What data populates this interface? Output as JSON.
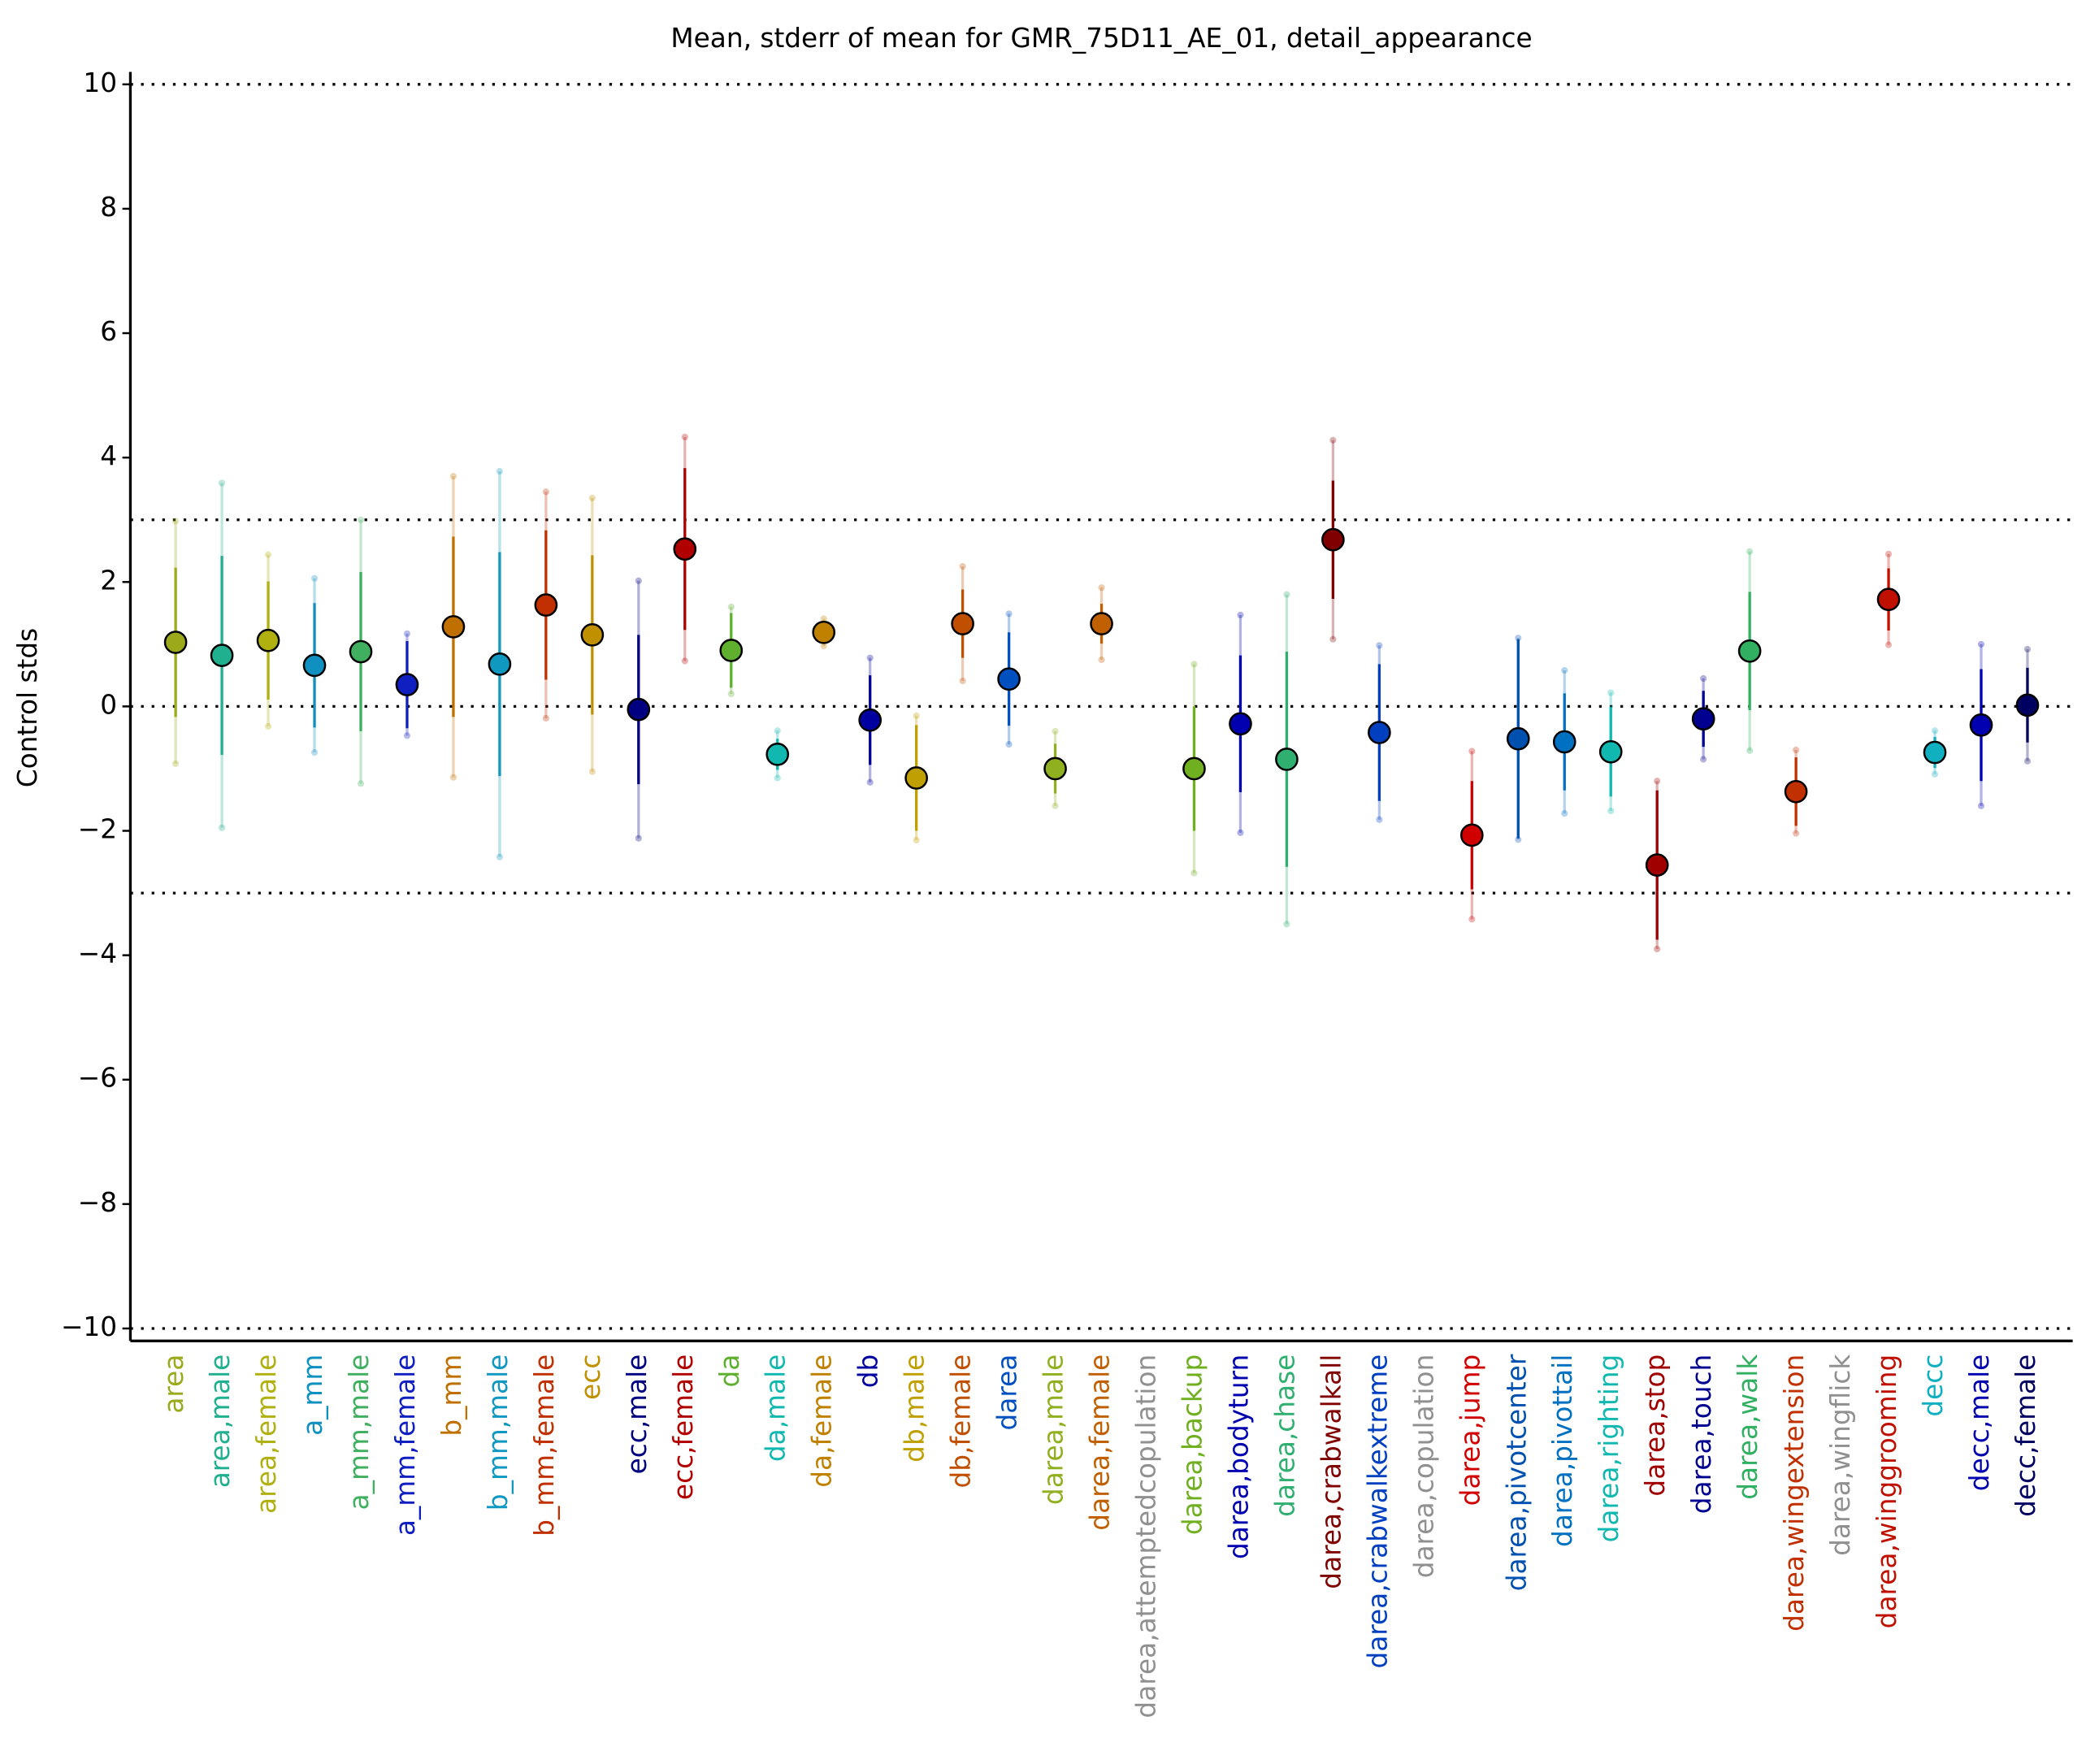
{
  "chart_data": {
    "type": "errorbar",
    "title": "Mean, stderr of mean for GMR_75D11_AE_01, detail_appearance",
    "ylabel": "Control stds",
    "categories": [
      "area",
      "area,male",
      "area,female",
      "a_mm",
      "a_mm,male",
      "a_mm,female",
      "b_mm",
      "b_mm,male",
      "b_mm,female",
      "ecc",
      "ecc,male",
      "ecc,female",
      "da",
      "da,male",
      "da,female",
      "db",
      "db,male",
      "db,female",
      "darea",
      "darea,male",
      "darea,female",
      "darea,attemptedcopulation",
      "darea,backup",
      "darea,bodyturn",
      "darea,chase",
      "darea,crabwalkall",
      "darea,crabwalkextreme",
      "darea,copulation",
      "darea,jump",
      "darea,pivotcenter",
      "darea,pivottail",
      "darea,righting",
      "darea,stop",
      "darea,touch",
      "darea,walk",
      "darea,wingextension",
      "darea,wingflick",
      "darea,winggrooming",
      "decc",
      "decc,male",
      "decc,female"
    ],
    "values": [
      1.03,
      0.82,
      1.06,
      0.66,
      0.88,
      0.35,
      1.28,
      0.68,
      1.63,
      1.15,
      -0.05,
      2.53,
      0.9,
      -0.77,
      1.19,
      -0.22,
      -1.15,
      1.33,
      0.44,
      -1.0,
      1.33,
      null,
      -1.0,
      -0.28,
      -0.85,
      2.68,
      -0.42,
      null,
      -2.07,
      -0.52,
      -0.57,
      -0.73,
      -2.55,
      -0.2,
      0.89,
      -1.37,
      null,
      1.72,
      -0.74,
      -0.3,
      0.02
    ],
    "stderr": [
      1.2,
      1.6,
      0.95,
      1.0,
      1.28,
      0.7,
      1.45,
      1.8,
      1.2,
      1.28,
      1.2,
      1.3,
      0.6,
      0.25,
      0.15,
      0.72,
      0.85,
      0.55,
      0.75,
      0.4,
      0.32,
      null,
      1.0,
      1.1,
      1.73,
      0.95,
      1.1,
      null,
      0.87,
      1.6,
      0.78,
      0.72,
      1.2,
      0.45,
      0.95,
      0.55,
      null,
      0.5,
      0.25,
      0.9,
      0.6
    ],
    "std": [
      1.95,
      2.77,
      1.38,
      1.4,
      2.12,
      0.82,
      2.42,
      3.1,
      1.82,
      2.2,
      2.07,
      1.8,
      0.7,
      0.38,
      0.22,
      1.0,
      1.0,
      0.92,
      1.05,
      0.6,
      0.58,
      null,
      1.68,
      1.75,
      2.65,
      1.6,
      1.4,
      null,
      1.35,
      1.62,
      1.15,
      0.95,
      1.35,
      0.65,
      1.6,
      0.67,
      null,
      0.73,
      0.35,
      1.3,
      0.9
    ],
    "colors": [
      "#9aaa1a",
      "#20b090",
      "#b0b010",
      "#1090c0",
      "#40b060",
      "#1020c0",
      "#c07000",
      "#1098c0",
      "#c03000",
      "#c09000",
      "#000080",
      "#b00000",
      "#60b030",
      "#10b8b0",
      "#c08000",
      "#0000a0",
      "#c0a000",
      "#c05000",
      "#0050c0",
      "#90b020",
      "#c06000",
      "#909090",
      "#70b020",
      "#0000b0",
      "#30b070",
      "#800000",
      "#0040c0",
      "#909090",
      "#d00000",
      "#0050b0",
      "#0070c0",
      "#10b8b0",
      "#a00000",
      "#000090",
      "#30b060",
      "#c03000",
      "#909090",
      "#c01000",
      "#10b0c0",
      "#0000b0",
      "#000060"
    ],
    "ylim": [
      -10.2,
      10.2
    ],
    "yticks": [
      {
        "value": -10,
        "label": "−10"
      },
      {
        "value": -8,
        "label": "−8"
      },
      {
        "value": -6,
        "label": "−6"
      },
      {
        "value": -4,
        "label": "−4"
      },
      {
        "value": -2,
        "label": "−2"
      },
      0,
      2,
      4,
      6,
      8,
      10
    ],
    "hlines": [
      10,
      3,
      0,
      -3,
      -10
    ]
  }
}
